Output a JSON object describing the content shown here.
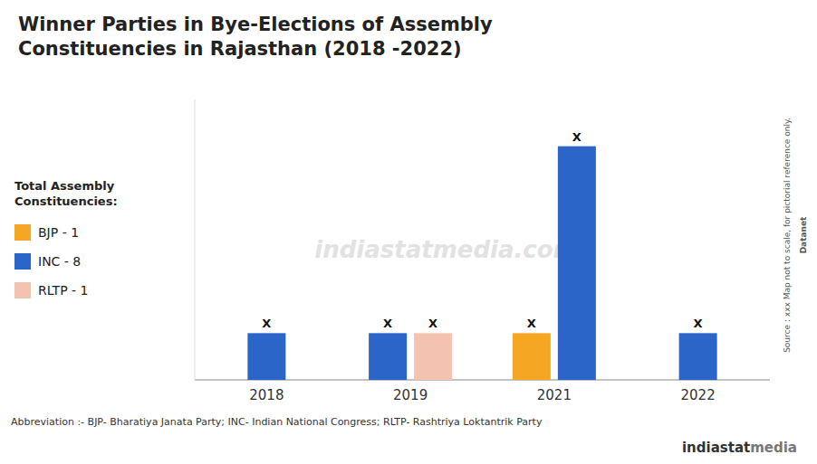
{
  "chart_data": {
    "type": "bar",
    "title": "Winner Parties in Bye-Elections of Assembly\nConstituencies in Rajasthan (2018 -2022)",
    "categories": [
      "2018",
      "2019",
      "2021",
      "2022"
    ],
    "series": [
      {
        "name": "BJP - 1",
        "color": "#F5A623",
        "values": [
          0,
          0,
          1,
          0
        ]
      },
      {
        "name": "INC - 8",
        "color": "#2B65C8",
        "values": [
          1,
          1,
          5,
          1
        ]
      },
      {
        "name": "RLTP - 1",
        "color": "#F4C2B0",
        "values": [
          0,
          1,
          0,
          0
        ]
      }
    ],
    "legend_title": "Total Assembly\nConstituencies:",
    "annotations": [
      {
        "text": "X",
        "category": "2018",
        "series": "INC - 8"
      },
      {
        "text": "X",
        "category": "2019",
        "series": "INC - 8"
      },
      {
        "text": "X",
        "category": "2019",
        "series": "RLTP - 1"
      },
      {
        "text": "X",
        "category": "2021",
        "series": "INC - 8"
      },
      {
        "text": "X",
        "category": "2021",
        "series": "BJP - 1"
      },
      {
        "text": "X",
        "category": "2022",
        "series": "INC - 8"
      }
    ],
    "footnote": "Abbreviation :- BJP- Bharatiya Janata Party; INC- Indian National Congress; RLTP- Rashtriya Loktantrik Party",
    "source": "Source : xxx   Map not to scale, for pictorial reference only.",
    "branding": [
      "Datanet",
      "indiastat",
      "media",
      "indiastatmedia.com"
    ],
    "ylim": [
      0,
      6
    ],
    "grid": false,
    "legend": "left",
    "tick_labels": "x"
  }
}
